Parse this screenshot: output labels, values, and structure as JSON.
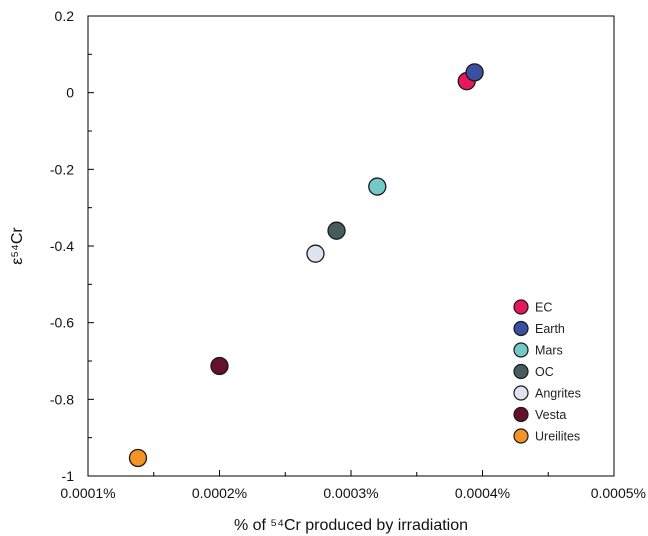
{
  "chart_data": {
    "type": "scatter",
    "title": "",
    "xlabel": "% of ⁵⁴Cr produced by irradiation",
    "ylabel": "ε⁵⁴Cr",
    "xlim": [
      0.0001,
      0.0005
    ],
    "ylim": [
      -1,
      0.2
    ],
    "x_ticks": [
      0.0001,
      0.0002,
      0.0003,
      0.0004,
      0.0005
    ],
    "x_tick_labels": [
      "0.0001%",
      "0.0002%",
      "0.0003%",
      "0.0004%",
      "0.0005%"
    ],
    "y_ticks": [
      0.2,
      0,
      -0.2,
      -0.4,
      -0.6,
      -0.8,
      -1
    ],
    "y_tick_labels": [
      "0.2",
      "0",
      "-0.2",
      "-0.4",
      "-0.6",
      "-0.8",
      "-1"
    ],
    "grid": false,
    "legend_position": "bottom-right",
    "series": [
      {
        "name": "EC",
        "color": "#e8175d",
        "x": [
          0.000388
        ],
        "y": [
          0.03
        ]
      },
      {
        "name": "Earth",
        "color": "#3b4fa0",
        "x": [
          0.000394
        ],
        "y": [
          0.053
        ]
      },
      {
        "name": "Mars",
        "color": "#72c9c8",
        "x": [
          0.00032
        ],
        "y": [
          -0.245
        ]
      },
      {
        "name": "OC",
        "color": "#455e5d",
        "x": [
          0.000289
        ],
        "y": [
          -0.36
        ]
      },
      {
        "name": "Angrites",
        "color": "#dde4ee",
        "x": [
          0.000273
        ],
        "y": [
          -0.42
        ]
      },
      {
        "name": "Vesta",
        "color": "#66102e",
        "x": [
          0.0002
        ],
        "y": [
          -0.713
        ]
      },
      {
        "name": "Ureilites",
        "color": "#f39425",
        "x": [
          0.000138
        ],
        "y": [
          -0.953
        ]
      }
    ]
  }
}
